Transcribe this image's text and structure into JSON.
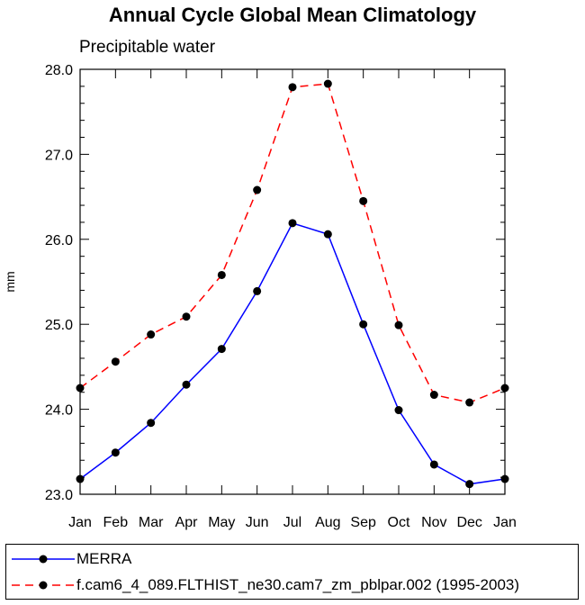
{
  "chart_data": {
    "type": "line",
    "title": "Annual Cycle Global Mean Climatology",
    "subtitle": "Precipitable water",
    "xlabel": "",
    "ylabel": "mm",
    "categories": [
      "Jan",
      "Feb",
      "Mar",
      "Apr",
      "May",
      "Jun",
      "Jul",
      "Aug",
      "Sep",
      "Oct",
      "Nov",
      "Dec",
      "Jan"
    ],
    "ylim": [
      23.0,
      28.0
    ],
    "yticks": [
      "23.0",
      "24.0",
      "25.0",
      "26.0",
      "27.0",
      "28.0"
    ],
    "series": [
      {
        "name": "MERRA",
        "color": "#0000ff",
        "dash": "solid",
        "values": [
          23.18,
          23.49,
          23.84,
          24.29,
          24.71,
          25.39,
          26.19,
          26.06,
          25.0,
          23.99,
          23.35,
          23.12,
          23.18
        ]
      },
      {
        "name": "f.cam6_4_089.FLTHIST_ne30.cam7_zm_pblpar.002 (1995-2003)",
        "color": "#ff0000",
        "dash": "dashed",
        "values": [
          24.25,
          24.56,
          24.88,
          25.09,
          25.58,
          26.58,
          27.79,
          27.83,
          26.45,
          24.99,
          24.17,
          24.08,
          24.25
        ]
      }
    ],
    "grid": false,
    "legend": "bottom"
  }
}
